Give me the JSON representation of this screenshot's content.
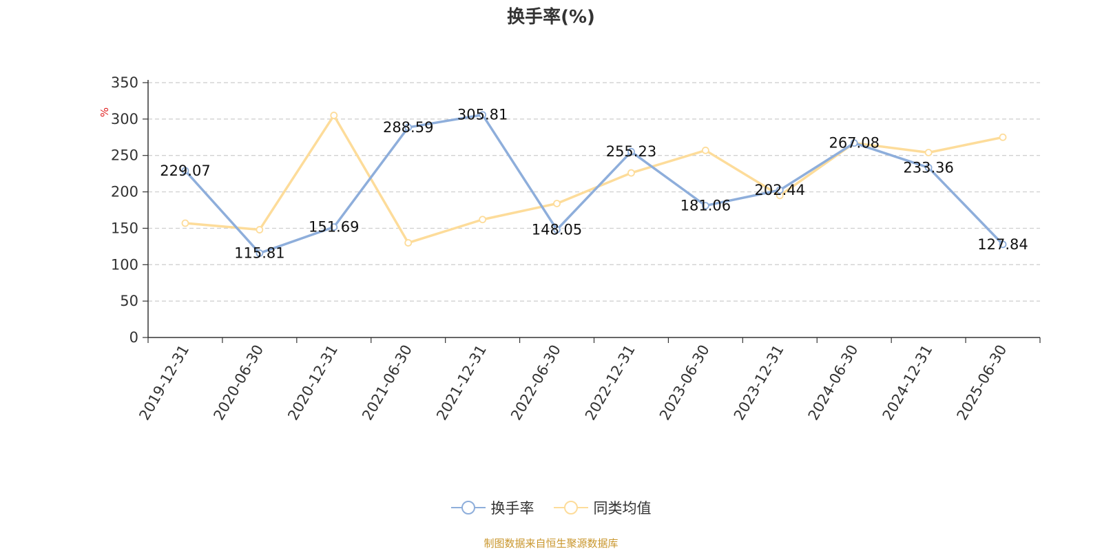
{
  "title": "换手率(%)",
  "source_note": "制图数据来自恒生聚源数据库",
  "colors": {
    "series_1": "#8eaedb",
    "series_2": "#fddc9a",
    "axis": "#333333",
    "grid": "#cccccc",
    "unit": "#e02020",
    "source": "#c9962c"
  },
  "chart_data": {
    "type": "line",
    "title": "换手率(%)",
    "ylabel": "%",
    "xlabel": "",
    "ylim": [
      0,
      350
    ],
    "yticks": [
      0,
      50,
      100,
      150,
      200,
      250,
      300,
      350
    ],
    "grid": "horizontal dashed",
    "legend_position": "bottom",
    "categories": [
      "2019-12-31",
      "2020-06-30",
      "2020-12-31",
      "2021-06-30",
      "2021-12-31",
      "2022-06-30",
      "2022-12-31",
      "2023-06-30",
      "2023-12-31",
      "2024-06-30",
      "2024-12-31",
      "2025-06-30"
    ],
    "series": [
      {
        "name": "换手率",
        "values": [
          229.07,
          115.81,
          151.69,
          288.59,
          305.81,
          148.05,
          255.23,
          181.06,
          202.44,
          267.08,
          233.36,
          127.84
        ],
        "labels_shown": true
      },
      {
        "name": "同类均值",
        "values": [
          157,
          148,
          305,
          130,
          162,
          184,
          226,
          257,
          195,
          267,
          254,
          275
        ],
        "labels_shown": false
      }
    ]
  }
}
